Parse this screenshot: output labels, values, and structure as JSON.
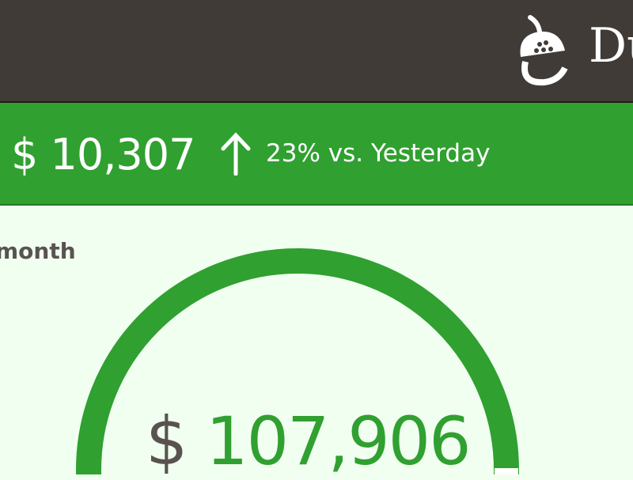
{
  "header": {
    "brand": "Du",
    "logo_icon": "acorn-icon"
  },
  "today": {
    "amount": "$ 10,307",
    "trend_icon": "arrow-up-icon",
    "change": "23% vs. Yesterday"
  },
  "month": {
    "title": "month",
    "currency": "$",
    "amount": "107,906"
  },
  "colors": {
    "header": "#403b37",
    "accent": "#30a030",
    "background": "#f1fff1",
    "text": "#595350"
  }
}
